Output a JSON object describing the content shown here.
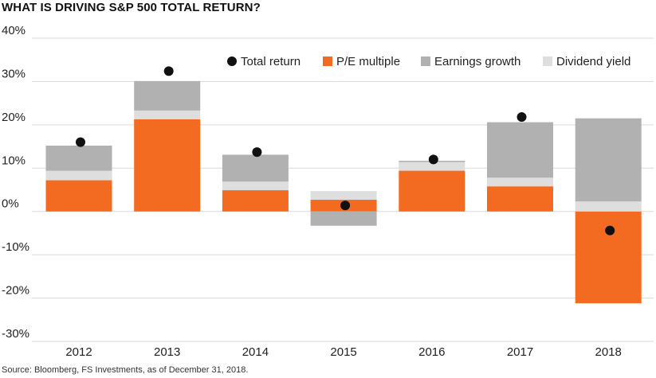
{
  "header": {
    "title": "WHAT IS DRIVING S&P 500 TOTAL RETURN?"
  },
  "footer": {
    "source": "Source: Bloomberg, FS Investments, as of December 31, 2018."
  },
  "colors": {
    "pe_multiple": "#f26b21",
    "earnings_growth": "#b1b1b1",
    "dividend_yield": "#dedede",
    "total_return": "#111111",
    "grid": "#d9d9d9"
  },
  "chart_data": {
    "type": "bar",
    "stacked": true,
    "title": "WHAT IS DRIVING S&P 500 TOTAL RETURN?",
    "xlabel": "",
    "ylabel": "",
    "ylim": [
      -30,
      40
    ],
    "yticks": [
      40,
      30,
      20,
      10,
      0,
      -10,
      -20,
      -30
    ],
    "ytick_labels": [
      "40%",
      "30%",
      "20%",
      "10%",
      "0%",
      "-10%",
      "-20%",
      "-30%"
    ],
    "grid": true,
    "legend_position": "top-right",
    "categories": [
      "2012",
      "2013",
      "2014",
      "2015",
      "2016",
      "2017",
      "2018"
    ],
    "series": [
      {
        "name": "P/E multiple",
        "key": "pe_multiple",
        "kind": "bar",
        "values": [
          7.2,
          21.3,
          4.9,
          2.7,
          9.4,
          5.8,
          -21.2
        ]
      },
      {
        "name": "Dividend yield",
        "key": "dividend_yield",
        "kind": "bar",
        "values": [
          2.2,
          2.0,
          2.0,
          2.0,
          2.0,
          2.0,
          2.3
        ]
      },
      {
        "name": "Earnings growth",
        "key": "earnings_growth",
        "kind": "bar",
        "values": [
          5.8,
          6.8,
          6.2,
          -3.3,
          0.3,
          12.8,
          19.2
        ]
      },
      {
        "name": "Total return",
        "key": "total_return",
        "kind": "point",
        "values": [
          16.0,
          32.4,
          13.7,
          1.4,
          12.0,
          21.8,
          -4.4
        ]
      }
    ],
    "legend": [
      "Total return",
      "P/E multiple",
      "Earnings growth",
      "Dividend yield"
    ]
  }
}
